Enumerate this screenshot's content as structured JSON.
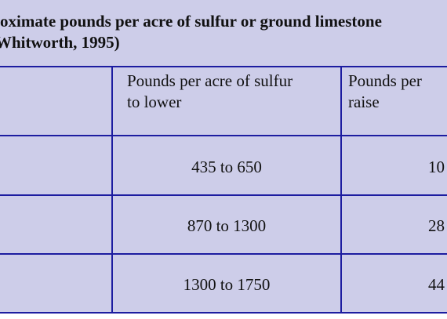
{
  "caption": [
    "oximate pounds per acre of sulfur or ground limestone",
    "Whitworth, 1995)"
  ],
  "table": {
    "header": [
      [],
      [
        "Pounds per acre of sulfur",
        "to lower"
      ],
      [
        "Pounds per",
        "raise"
      ]
    ],
    "rows": [
      [
        "435 to 650",
        "10"
      ],
      [
        "870 to 1300",
        "28"
      ],
      [
        "1300 to 1750",
        "44"
      ]
    ]
  }
}
